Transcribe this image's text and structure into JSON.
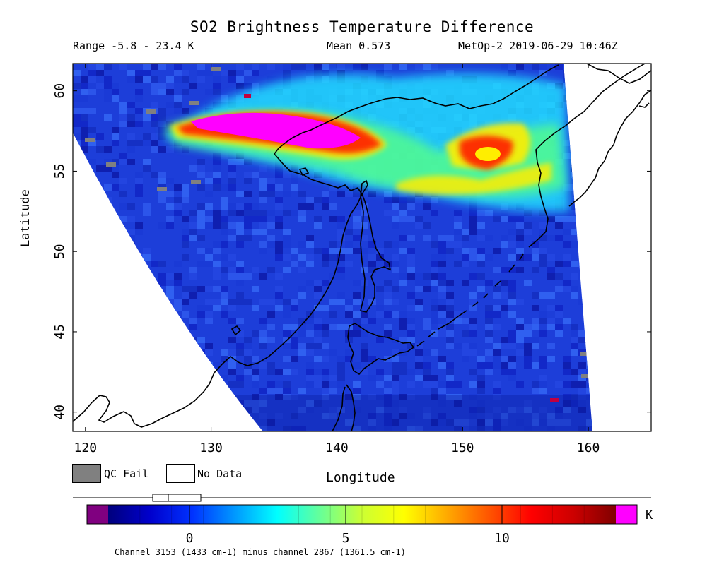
{
  "header": {
    "title": "SO2 Brightness Temperature Difference",
    "range": "Range -5.8 - 23.4 K",
    "mean": "Mean 0.573",
    "satellite_time": "MetOp-2 2019-06-29 10:46Z"
  },
  "axes": {
    "x_label": "Longitude",
    "y_label": "Latitude",
    "x_range": [
      119,
      165
    ],
    "y_range": [
      38.8,
      61.7
    ],
    "x_ticks": [
      "120",
      "130",
      "140",
      "150",
      "160"
    ],
    "y_ticks": [
      "40",
      "45",
      "50",
      "55",
      "60"
    ]
  },
  "legend": {
    "qc_fail": "QC Fail",
    "no_data": "No Data",
    "qc_color": "#808080",
    "no_data_color": "#ffffff"
  },
  "colorbar": {
    "unit": "K",
    "tick_labels": [
      "0",
      "5",
      "10"
    ],
    "under_color": "#800080",
    "over_color": "#ff00ff",
    "colors": [
      "#00007d",
      "#0000cd",
      "#0033ff",
      "#0099ff",
      "#00ffff",
      "#66ff99",
      "#ccff33",
      "#ffff00",
      "#ffaa00",
      "#ff5500",
      "#ff0000",
      "#cc0000",
      "#800000"
    ]
  },
  "footnote": "Channel 3153 (1433 cm-1) minus channel 2867 (1361.5 cm-1)",
  "map_colors": {
    "background_blue": "#1d3ed9",
    "plume_magenta": "#ff00ff",
    "plume_red": "#ff1a00",
    "plume_yellow": "#ffee00",
    "plume_green": "#55ff88",
    "plume_cyan": "#22ddff",
    "coastline": "#000000"
  }
}
